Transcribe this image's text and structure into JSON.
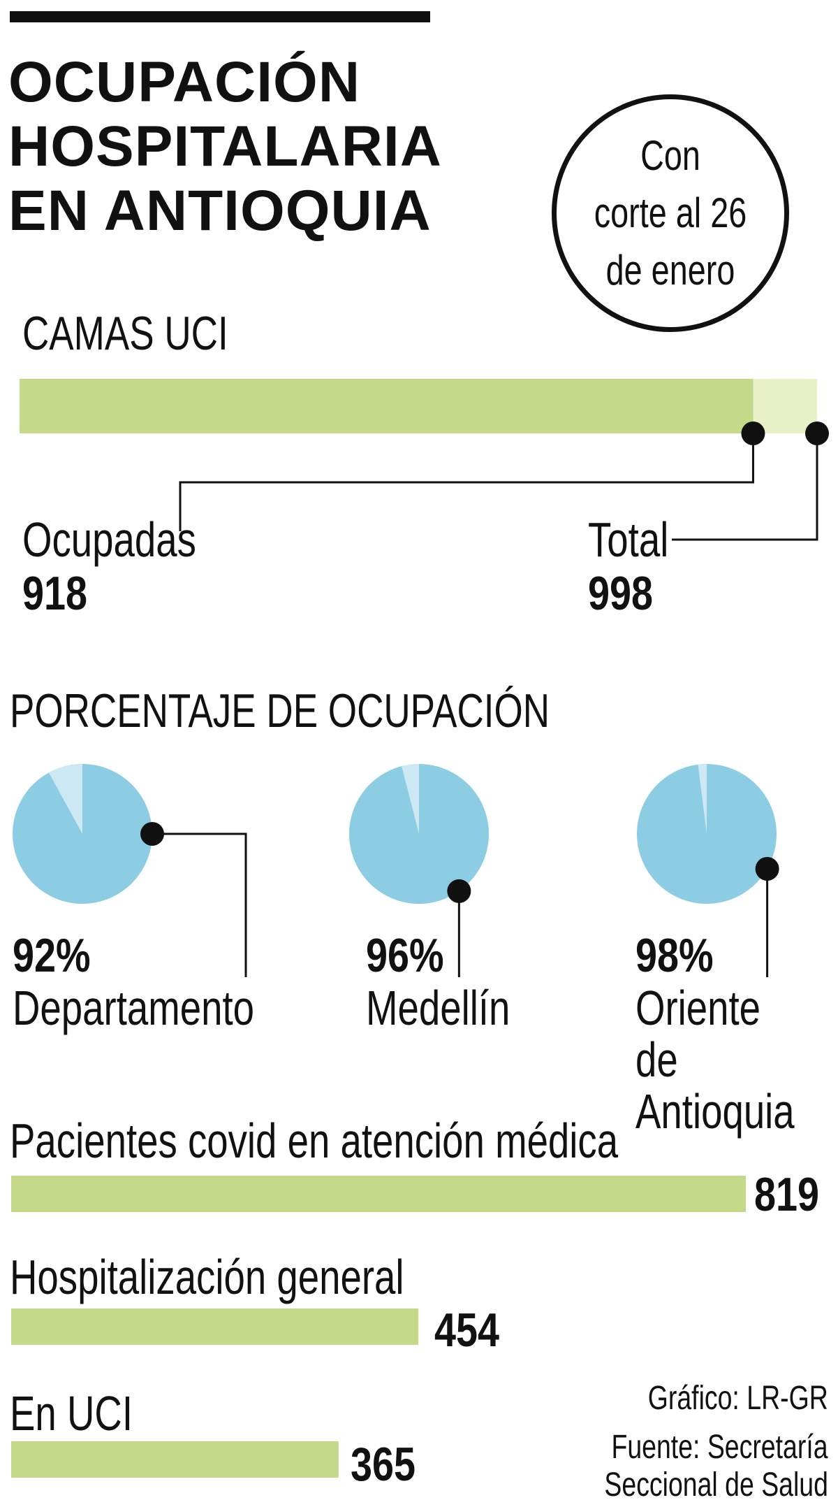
{
  "title": "OCUPACIÓN\nHOSPITALARIA\nEN ANTIOQUIA",
  "badge": "Con\ncorte al 26\nde enero",
  "camas": {
    "heading": "CAMAS UCI",
    "occupied_label": "Ocupadas",
    "occupied_value": "918",
    "total_label": "Total",
    "total_value": "998"
  },
  "ocupacion": {
    "heading": "PORCENTAJE DE OCUPACIÓN",
    "items": [
      {
        "pct": "92%",
        "name": "Departamento"
      },
      {
        "pct": "96%",
        "name": "Medellín"
      },
      {
        "pct": "98%",
        "name": "Oriente de\nAntioquia"
      }
    ]
  },
  "pacientes": {
    "items": [
      {
        "label": "Pacientes covid en atención médica",
        "value": "819"
      },
      {
        "label": "Hospitalización general",
        "value": "454"
      },
      {
        "label": "En UCI",
        "value": "365"
      }
    ]
  },
  "credit": {
    "grafico": "Gráfico: LR-GR",
    "fuente_1": "Fuente: Secretaría",
    "fuente_2": "Seccional de Salud"
  },
  "colors": {
    "green": "#c5d98b",
    "green_light": "#e8f0c8",
    "blue": "#8ccde3",
    "blue_light": "#cce9f3",
    "ink": "#111111"
  },
  "chart_data": [
    {
      "type": "bar",
      "title": "CAMAS UCI",
      "categories": [
        "Ocupadas",
        "Total"
      ],
      "values": [
        918,
        998
      ]
    },
    {
      "type": "pie",
      "title": "PORCENTAJE DE OCUPACIÓN",
      "categories": [
        "Departamento",
        "Medellín",
        "Oriente de Antioquia"
      ],
      "values": [
        92,
        96,
        98
      ]
    },
    {
      "type": "bar",
      "categories": [
        "Pacientes covid en atención médica",
        "Hospitalización general",
        "En UCI"
      ],
      "values": [
        819,
        454,
        365
      ]
    }
  ]
}
